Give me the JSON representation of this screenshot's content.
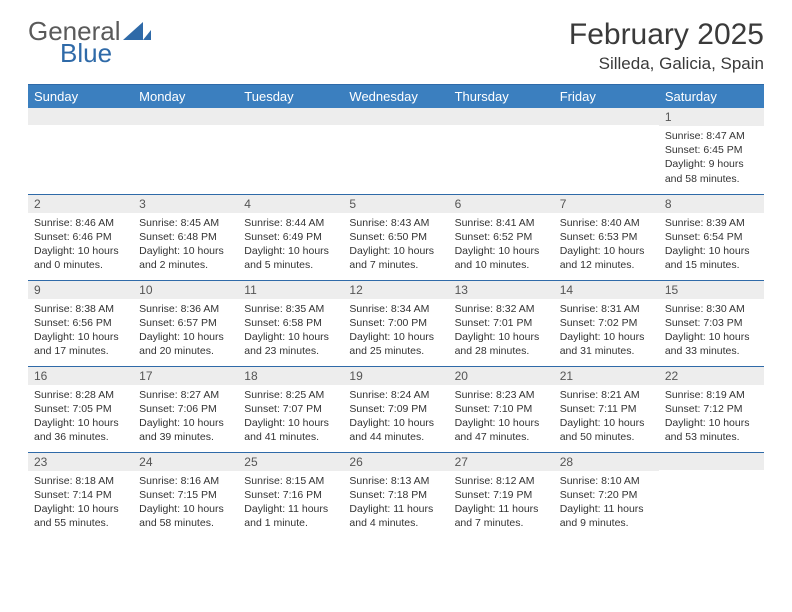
{
  "brand": {
    "part1": "General",
    "part2": "Blue"
  },
  "title": "February 2025",
  "location": "Silleda, Galicia, Spain",
  "colors": {
    "header_bg": "#3b7fbf",
    "rule": "#2f6aa8",
    "daynum_bg": "#ededed",
    "text": "#333333",
    "brand_gray": "#5a5a5a",
    "brand_blue": "#2f6aa8"
  },
  "weekdays": [
    "Sunday",
    "Monday",
    "Tuesday",
    "Wednesday",
    "Thursday",
    "Friday",
    "Saturday"
  ],
  "weeks": [
    [
      {
        "n": "",
        "sr": "",
        "ss": "",
        "dl": ""
      },
      {
        "n": "",
        "sr": "",
        "ss": "",
        "dl": ""
      },
      {
        "n": "",
        "sr": "",
        "ss": "",
        "dl": ""
      },
      {
        "n": "",
        "sr": "",
        "ss": "",
        "dl": ""
      },
      {
        "n": "",
        "sr": "",
        "ss": "",
        "dl": ""
      },
      {
        "n": "",
        "sr": "",
        "ss": "",
        "dl": ""
      },
      {
        "n": "1",
        "sr": "Sunrise: 8:47 AM",
        "ss": "Sunset: 6:45 PM",
        "dl": "Daylight: 9 hours and 58 minutes."
      }
    ],
    [
      {
        "n": "2",
        "sr": "Sunrise: 8:46 AM",
        "ss": "Sunset: 6:46 PM",
        "dl": "Daylight: 10 hours and 0 minutes."
      },
      {
        "n": "3",
        "sr": "Sunrise: 8:45 AM",
        "ss": "Sunset: 6:48 PM",
        "dl": "Daylight: 10 hours and 2 minutes."
      },
      {
        "n": "4",
        "sr": "Sunrise: 8:44 AM",
        "ss": "Sunset: 6:49 PM",
        "dl": "Daylight: 10 hours and 5 minutes."
      },
      {
        "n": "5",
        "sr": "Sunrise: 8:43 AM",
        "ss": "Sunset: 6:50 PM",
        "dl": "Daylight: 10 hours and 7 minutes."
      },
      {
        "n": "6",
        "sr": "Sunrise: 8:41 AM",
        "ss": "Sunset: 6:52 PM",
        "dl": "Daylight: 10 hours and 10 minutes."
      },
      {
        "n": "7",
        "sr": "Sunrise: 8:40 AM",
        "ss": "Sunset: 6:53 PM",
        "dl": "Daylight: 10 hours and 12 minutes."
      },
      {
        "n": "8",
        "sr": "Sunrise: 8:39 AM",
        "ss": "Sunset: 6:54 PM",
        "dl": "Daylight: 10 hours and 15 minutes."
      }
    ],
    [
      {
        "n": "9",
        "sr": "Sunrise: 8:38 AM",
        "ss": "Sunset: 6:56 PM",
        "dl": "Daylight: 10 hours and 17 minutes."
      },
      {
        "n": "10",
        "sr": "Sunrise: 8:36 AM",
        "ss": "Sunset: 6:57 PM",
        "dl": "Daylight: 10 hours and 20 minutes."
      },
      {
        "n": "11",
        "sr": "Sunrise: 8:35 AM",
        "ss": "Sunset: 6:58 PM",
        "dl": "Daylight: 10 hours and 23 minutes."
      },
      {
        "n": "12",
        "sr": "Sunrise: 8:34 AM",
        "ss": "Sunset: 7:00 PM",
        "dl": "Daylight: 10 hours and 25 minutes."
      },
      {
        "n": "13",
        "sr": "Sunrise: 8:32 AM",
        "ss": "Sunset: 7:01 PM",
        "dl": "Daylight: 10 hours and 28 minutes."
      },
      {
        "n": "14",
        "sr": "Sunrise: 8:31 AM",
        "ss": "Sunset: 7:02 PM",
        "dl": "Daylight: 10 hours and 31 minutes."
      },
      {
        "n": "15",
        "sr": "Sunrise: 8:30 AM",
        "ss": "Sunset: 7:03 PM",
        "dl": "Daylight: 10 hours and 33 minutes."
      }
    ],
    [
      {
        "n": "16",
        "sr": "Sunrise: 8:28 AM",
        "ss": "Sunset: 7:05 PM",
        "dl": "Daylight: 10 hours and 36 minutes."
      },
      {
        "n": "17",
        "sr": "Sunrise: 8:27 AM",
        "ss": "Sunset: 7:06 PM",
        "dl": "Daylight: 10 hours and 39 minutes."
      },
      {
        "n": "18",
        "sr": "Sunrise: 8:25 AM",
        "ss": "Sunset: 7:07 PM",
        "dl": "Daylight: 10 hours and 41 minutes."
      },
      {
        "n": "19",
        "sr": "Sunrise: 8:24 AM",
        "ss": "Sunset: 7:09 PM",
        "dl": "Daylight: 10 hours and 44 minutes."
      },
      {
        "n": "20",
        "sr": "Sunrise: 8:23 AM",
        "ss": "Sunset: 7:10 PM",
        "dl": "Daylight: 10 hours and 47 minutes."
      },
      {
        "n": "21",
        "sr": "Sunrise: 8:21 AM",
        "ss": "Sunset: 7:11 PM",
        "dl": "Daylight: 10 hours and 50 minutes."
      },
      {
        "n": "22",
        "sr": "Sunrise: 8:19 AM",
        "ss": "Sunset: 7:12 PM",
        "dl": "Daylight: 10 hours and 53 minutes."
      }
    ],
    [
      {
        "n": "23",
        "sr": "Sunrise: 8:18 AM",
        "ss": "Sunset: 7:14 PM",
        "dl": "Daylight: 10 hours and 55 minutes."
      },
      {
        "n": "24",
        "sr": "Sunrise: 8:16 AM",
        "ss": "Sunset: 7:15 PM",
        "dl": "Daylight: 10 hours and 58 minutes."
      },
      {
        "n": "25",
        "sr": "Sunrise: 8:15 AM",
        "ss": "Sunset: 7:16 PM",
        "dl": "Daylight: 11 hours and 1 minute."
      },
      {
        "n": "26",
        "sr": "Sunrise: 8:13 AM",
        "ss": "Sunset: 7:18 PM",
        "dl": "Daylight: 11 hours and 4 minutes."
      },
      {
        "n": "27",
        "sr": "Sunrise: 8:12 AM",
        "ss": "Sunset: 7:19 PM",
        "dl": "Daylight: 11 hours and 7 minutes."
      },
      {
        "n": "28",
        "sr": "Sunrise: 8:10 AM",
        "ss": "Sunset: 7:20 PM",
        "dl": "Daylight: 11 hours and 9 minutes."
      },
      {
        "n": "",
        "sr": "",
        "ss": "",
        "dl": ""
      }
    ]
  ]
}
